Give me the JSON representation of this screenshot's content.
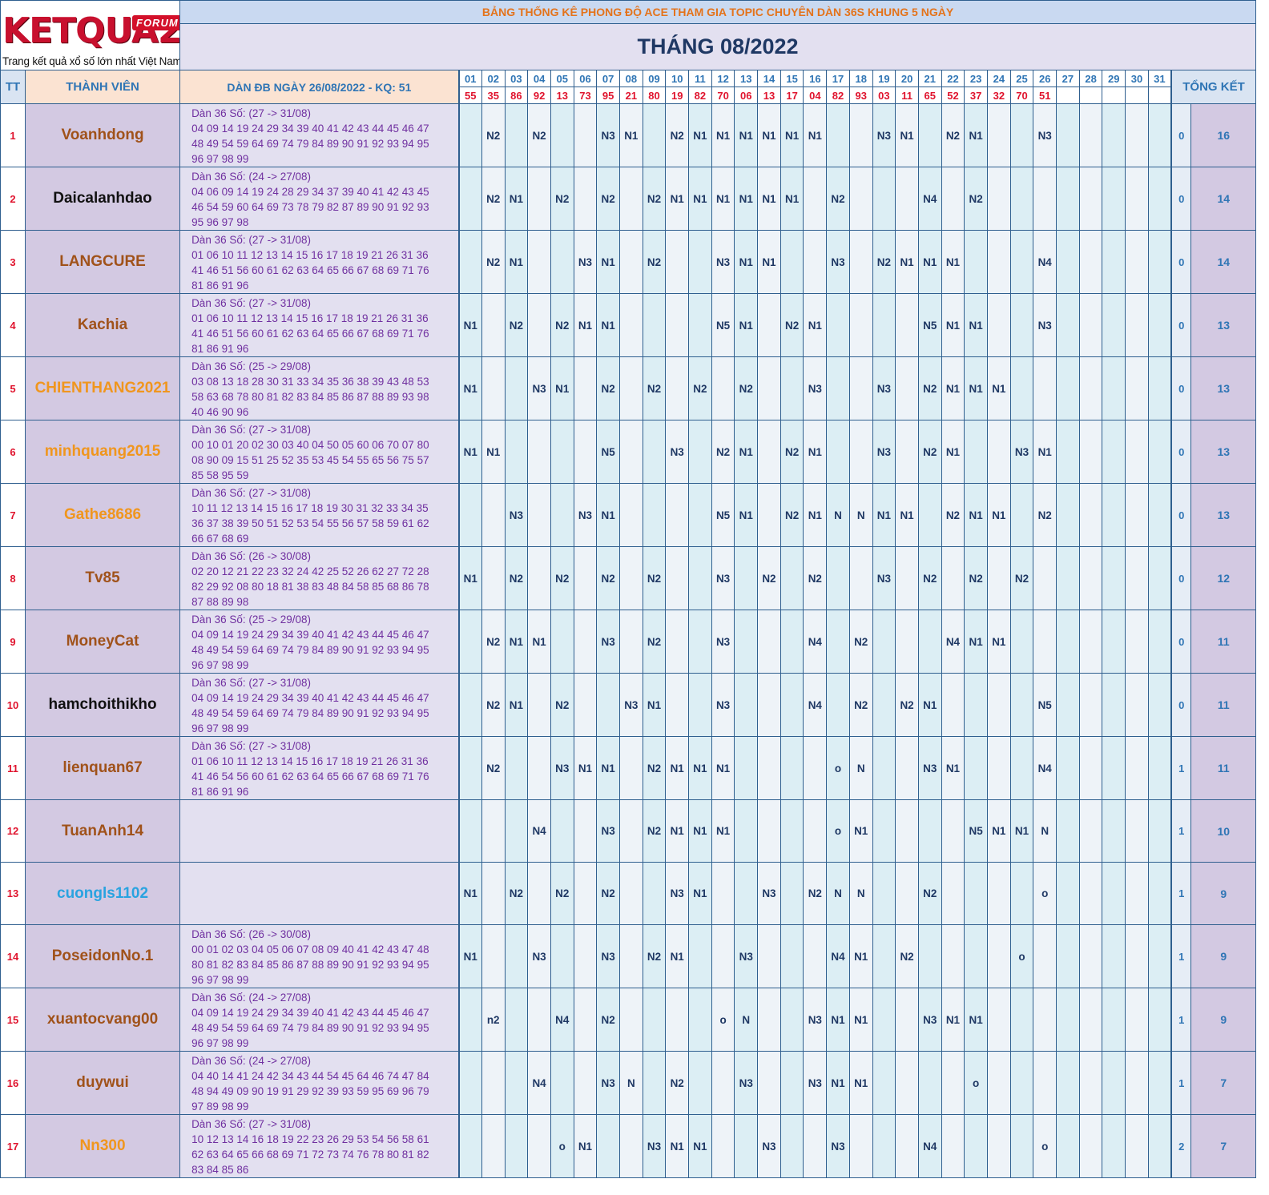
{
  "logo": {
    "word": "KETQUA2",
    "badge": "FORUM",
    "tagline": "Trang kết quả xổ số lớn nhất Việt Nam"
  },
  "title": "BẢNG THỐNG KÊ PHONG ĐỘ ACE THAM GIA TOPIC CHUYÊN DÀN 36S KHUNG 5 NGÀY",
  "month": "THÁNG 08/2022",
  "headers": {
    "tt": "TT",
    "member": "THÀNH VIÊN",
    "dan": "DÀN ĐB NGÀY 26/08/2022 - KQ: 51",
    "total": "TỔNG KẾT"
  },
  "days": [
    "01",
    "02",
    "03",
    "04",
    "05",
    "06",
    "07",
    "08",
    "09",
    "10",
    "11",
    "12",
    "13",
    "14",
    "15",
    "16",
    "17",
    "18",
    "19",
    "20",
    "21",
    "22",
    "23",
    "24",
    "25",
    "26",
    "27",
    "28",
    "29",
    "30",
    "31"
  ],
  "results": [
    "55",
    "35",
    "86",
    "92",
    "13",
    "73",
    "95",
    "21",
    "80",
    "19",
    "82",
    "70",
    "06",
    "13",
    "17",
    "04",
    "82",
    "93",
    "03",
    "11",
    "65",
    "52",
    "37",
    "32",
    "70",
    "51",
    "",
    "",
    "",
    "",
    ""
  ],
  "colors": {
    "brown": "#a0521a",
    "black": "#111111",
    "orange": "#f0961e",
    "blue": "#29a3e0",
    "red": "#e0142e",
    "accent": "#2f75b5"
  },
  "rows": [
    {
      "tt": "1",
      "name": "Voanhdong",
      "color": "#a0521a",
      "dan": [
        "Dàn 36 Số: (27 -> 31/08)",
        "04 09 14 19 24 29 34 39 40 41 42 43 44 45 46 47",
        "48 49 54 59 64 69 74 79 84 89 90 91 92 93 94 95",
        "96 97 98 99"
      ],
      "marks": {
        "02": "N2",
        "04": "N2",
        "07": "N3",
        "08": "N1",
        "10": "N2",
        "11": "N1",
        "12": "N1",
        "13": "N1",
        "14": "N1",
        "15": "N1",
        "16": "N1",
        "19": "N3",
        "20": "N1",
        "22": "N2",
        "23": "N1",
        "26": "N3"
      },
      "bl": "0",
      "total": "16"
    },
    {
      "tt": "2",
      "name": "Daicalanhdao",
      "color": "#111111",
      "dan": [
        "Dàn 36 Số: (24 -> 27/08)",
        "04 06 09 14 19 24 28 29 34 37 39 40 41 42 43 45",
        "46 54 59 60 64 69 73 78 79 82 87 89 90 91 92 93",
        "95 96 97 98"
      ],
      "marks": {
        "02": "N2",
        "03": "N1",
        "05": "N2",
        "07": "N2",
        "09": "N2",
        "10": "N1",
        "11": "N1",
        "12": "N1",
        "13": "N1",
        "14": "N1",
        "15": "N1",
        "17": "N2",
        "21": "N4",
        "23": "N2"
      },
      "bl": "0",
      "total": "14"
    },
    {
      "tt": "3",
      "name": "LANGCURE",
      "color": "#a0521a",
      "dan": [
        "Dàn 36 Số: (27 -> 31/08)",
        "01 06 10 11 12 13 14 15 16 17 18 19 21 26 31 36",
        "41 46 51 56 60 61 62 63 64 65 66 67 68 69 71 76",
        "81 86 91 96"
      ],
      "marks": {
        "02": "N2",
        "03": "N1",
        "06": "N3",
        "07": "N1",
        "09": "N2",
        "12": "N3",
        "13": "N1",
        "14": "N1",
        "17": "N3",
        "19": "N2",
        "20": "N1",
        "21": "N1",
        "22": "N1",
        "26": "N4"
      },
      "bl": "0",
      "total": "14"
    },
    {
      "tt": "4",
      "name": "Kachia",
      "color": "#a0521a",
      "dan": [
        "Dàn 36 Số: (27 -> 31/08)",
        "01 06 10 11 12 13 14 15 16 17 18 19 21 26 31 36",
        "41 46 51 56 60 61 62 63 64 65 66 67 68 69 71 76",
        "81 86 91 96"
      ],
      "marks": {
        "01": "N1",
        "03": "N2",
        "05": "N2",
        "06": "N1",
        "07": "N1",
        "12": "N5",
        "13": "N1",
        "15": "N2",
        "16": "N1",
        "21": "N5",
        "22": "N1",
        "23": "N1",
        "26": "N3"
      },
      "bl": "0",
      "total": "13"
    },
    {
      "tt": "5",
      "name": "CHIENTHANG2021",
      "color": "#f0961e",
      "dan": [
        "Dàn 36 Số: (25 -> 29/08)",
        "03 08 13 18 28 30 31 33 34 35 36 38 39 43 48 53",
        "58 63 68 78 80 81 82 83 84 85 86 87 88 89 93 98",
        "40 46 90 96"
      ],
      "marks": {
        "01": "N1",
        "04": "N3",
        "05": "N1",
        "07": "N2",
        "09": "N2",
        "11": "N2",
        "13": "N2",
        "16": "N3",
        "19": "N3",
        "21": "N2",
        "22": "N1",
        "23": "N1",
        "24": "N1"
      },
      "bl": "0",
      "total": "13"
    },
    {
      "tt": "6",
      "name": "minhquang2015",
      "color": "#f0961e",
      "dan": [
        "Dàn 36 Số: (27 -> 31/08)",
        "00 10 01 20 02 30 03 40 04 50 05 60 06 70 07 80",
        "08 90 09 15 51 25 52 35 53 45 54 55 65 56 75 57",
        "85 58 95 59"
      ],
      "marks": {
        "01": "N1",
        "02": "N1",
        "07": "N5",
        "10": "N3",
        "12": "N2",
        "13": "N1",
        "15": "N2",
        "16": "N1",
        "19": "N3",
        "21": "N2",
        "22": "N1",
        "25": "N3",
        "26": "N1"
      },
      "bl": "0",
      "total": "13"
    },
    {
      "tt": "7",
      "name": "Gathe8686",
      "color": "#f0961e",
      "dan": [
        "Dàn 36 Số: (27 -> 31/08)",
        "10 11 12 13 14 15 16 17 18 19 30 31 32 33 34 35",
        "36 37 38 39 50 51 52 53 54 55 56 57 58 59 61 62",
        "66 67 68 69"
      ],
      "marks": {
        "03": "N3",
        "06": "N3",
        "07": "N1",
        "12": "N5",
        "13": "N1",
        "15": "N2",
        "16": "N1",
        "17": "N",
        "18": "N",
        "19": "N1",
        "20": "N1",
        "22": "N2",
        "23": "N1",
        "24": "N1",
        "26": "N2"
      },
      "bl": "0",
      "total": "13"
    },
    {
      "tt": "8",
      "name": "Tv85",
      "color": "#a0521a",
      "dan": [
        "Dàn 36 Số: (26 -> 30/08)",
        "02 20 12 21 22 23 32 24 42 25 52 26 62 27 72 28",
        "82 29 92 08 80 18 81 38 83 48 84 58 85 68 86 78",
        "87 88 89 98"
      ],
      "marks": {
        "01": "N1",
        "03": "N2",
        "05": "N2",
        "07": "N2",
        "09": "N2",
        "12": "N3",
        "14": "N2",
        "16": "N2",
        "19": "N3",
        "21": "N2",
        "23": "N2",
        "25": "N2"
      },
      "bl": "0",
      "total": "12"
    },
    {
      "tt": "9",
      "name": "MoneyCat",
      "color": "#a0521a",
      "dan": [
        "Dàn 36 Số: (25 -> 29/08)",
        "04 09 14 19 24 29 34 39 40 41 42 43 44 45 46 47",
        "48 49 54 59 64 69 74 79 84 89 90 91 92 93 94 95",
        "96 97 98 99"
      ],
      "marks": {
        "02": "N2",
        "03": "N1",
        "04": "N1",
        "07": "N3",
        "09": "N2",
        "12": "N3",
        "16": "N4",
        "18": "N2",
        "22": "N4",
        "23": "N1",
        "24": "N1"
      },
      "bl": "0",
      "total": "11"
    },
    {
      "tt": "10",
      "name": "hamchoithikho",
      "color": "#111111",
      "dan": [
        "Dàn 36 Số: (27 -> 31/08)",
        "04 09 14 19 24 29 34 39 40 41 42 43 44 45 46 47",
        "48 49 54 59 64 69 74 79 84 89 90 91 92 93 94 95",
        "96 97 98 99"
      ],
      "marks": {
        "02": "N2",
        "03": "N1",
        "05": "N2",
        "08": "N3",
        "09": "N1",
        "12": "N3",
        "16": "N4",
        "18": "N2",
        "20": "N2",
        "21": "N1",
        "26": "N5"
      },
      "bl": "0",
      "total": "11"
    },
    {
      "tt": "11",
      "name": "lienquan67",
      "color": "#a0521a",
      "dan": [
        "Dàn 36 Số: (27 -> 31/08)",
        "01 06 10 11 12 13 14 15 16 17 18 19 21 26 31 36",
        "41 46 54 56 60 61 62 63 64 65 66 67 68 69 71 76",
        "81 86 91 96"
      ],
      "marks": {
        "02": "N2",
        "05": "N3",
        "06": "N1",
        "07": "N1",
        "09": "N2",
        "10": "N1",
        "11": "N1",
        "12": "N1",
        "17": "o",
        "18": "N",
        "21": "N3",
        "22": "N1",
        "26": "N4"
      },
      "bl": "1",
      "total": "11"
    },
    {
      "tt": "12",
      "name": "TuanAnh14",
      "color": "#a0521a",
      "dan": [],
      "marks": {
        "04": "N4",
        "07": "N3",
        "09": "N2",
        "10": "N1",
        "11": "N1",
        "12": "N1",
        "17": "o",
        "18": "N1",
        "23": "N5",
        "24": "N1",
        "25": "N1",
        "26": "N"
      },
      "bl": "1",
      "total": "10"
    },
    {
      "tt": "13",
      "name": "cuongls1102",
      "color": "#29a3e0",
      "dan": [],
      "marks": {
        "01": "N1",
        "03": "N2",
        "05": "N2",
        "07": "N2",
        "10": "N3",
        "11": "N1",
        "14": "N3",
        "16": "N2",
        "17": "N",
        "18": "N",
        "21": "N2",
        "26": "o"
      },
      "bl": "1",
      "total": "9"
    },
    {
      "tt": "14",
      "name": "PoseidonNo.1",
      "color": "#a0521a",
      "dan": [
        "Dàn 36 Số: (26 -> 30/08)",
        "00 01 02 03 04 05 06 07 08 09 40 41 42 43 47 48",
        "80 81 82 83 84 85 86 87 88 89 90 91 92 93 94 95",
        "96 97 98 99"
      ],
      "marks": {
        "01": "N1",
        "04": "N3",
        "07": "N3",
        "09": "N2",
        "10": "N1",
        "13": "N3",
        "17": "N4",
        "18": "N1",
        "20": "N2",
        "25": "o"
      },
      "bl": "1",
      "total": "9"
    },
    {
      "tt": "15",
      "name": "xuantocvang00",
      "color": "#a0521a",
      "dan": [
        "Dàn 36 Số: (24 -> 27/08)",
        "04 09 14 19 24 29 34 39 40 41 42 43 44 45 46 47",
        "48 49 54 59 64 69 74 79 84 89 90 91 92 93 94 95",
        "96 97 98 99"
      ],
      "marks": {
        "02": "n2",
        "05": "N4",
        "07": "N2",
        "12": "o",
        "13": "N",
        "16": "N3",
        "17": "N1",
        "18": "N1",
        "21": "N3",
        "22": "N1",
        "23": "N1"
      },
      "bl": "1",
      "total": "9"
    },
    {
      "tt": "16",
      "name": "duywui",
      "color": "#a0521a",
      "dan": [
        "Dàn 36 Số: (24 -> 27/08)",
        "04 40 14 41 24 42 34 43 44 54 45 64 46 74 47 84",
        "48 94 49 09 90 19 91 29 92 39 93 59 95 69 96 79",
        "97 89 98 99"
      ],
      "marks": {
        "04": "N4",
        "07": "N3",
        "08": "N",
        "10": "N2",
        "13": "N3",
        "16": "N3",
        "17": "N1",
        "18": "N1",
        "23": "o"
      },
      "bl": "1",
      "total": "7"
    },
    {
      "tt": "17",
      "name": "Nn300",
      "color": "#f0961e",
      "dan": [
        "Dàn 36 Số: (27 -> 31/08)",
        "10 12 13 14 16 18 19 22 23 26 29 53 54 56 58 61",
        "62 63 64 65 66 68 69 71 72 73 74 76 78 80 81 82",
        "83 84 85 86"
      ],
      "marks": {
        "05": "o",
        "06": "N1",
        "09": "N3",
        "10": "N1",
        "11": "N1",
        "14": "N3",
        "17": "N3",
        "21": "N4",
        "26": "o"
      },
      "bl": "2",
      "total": "7"
    }
  ]
}
